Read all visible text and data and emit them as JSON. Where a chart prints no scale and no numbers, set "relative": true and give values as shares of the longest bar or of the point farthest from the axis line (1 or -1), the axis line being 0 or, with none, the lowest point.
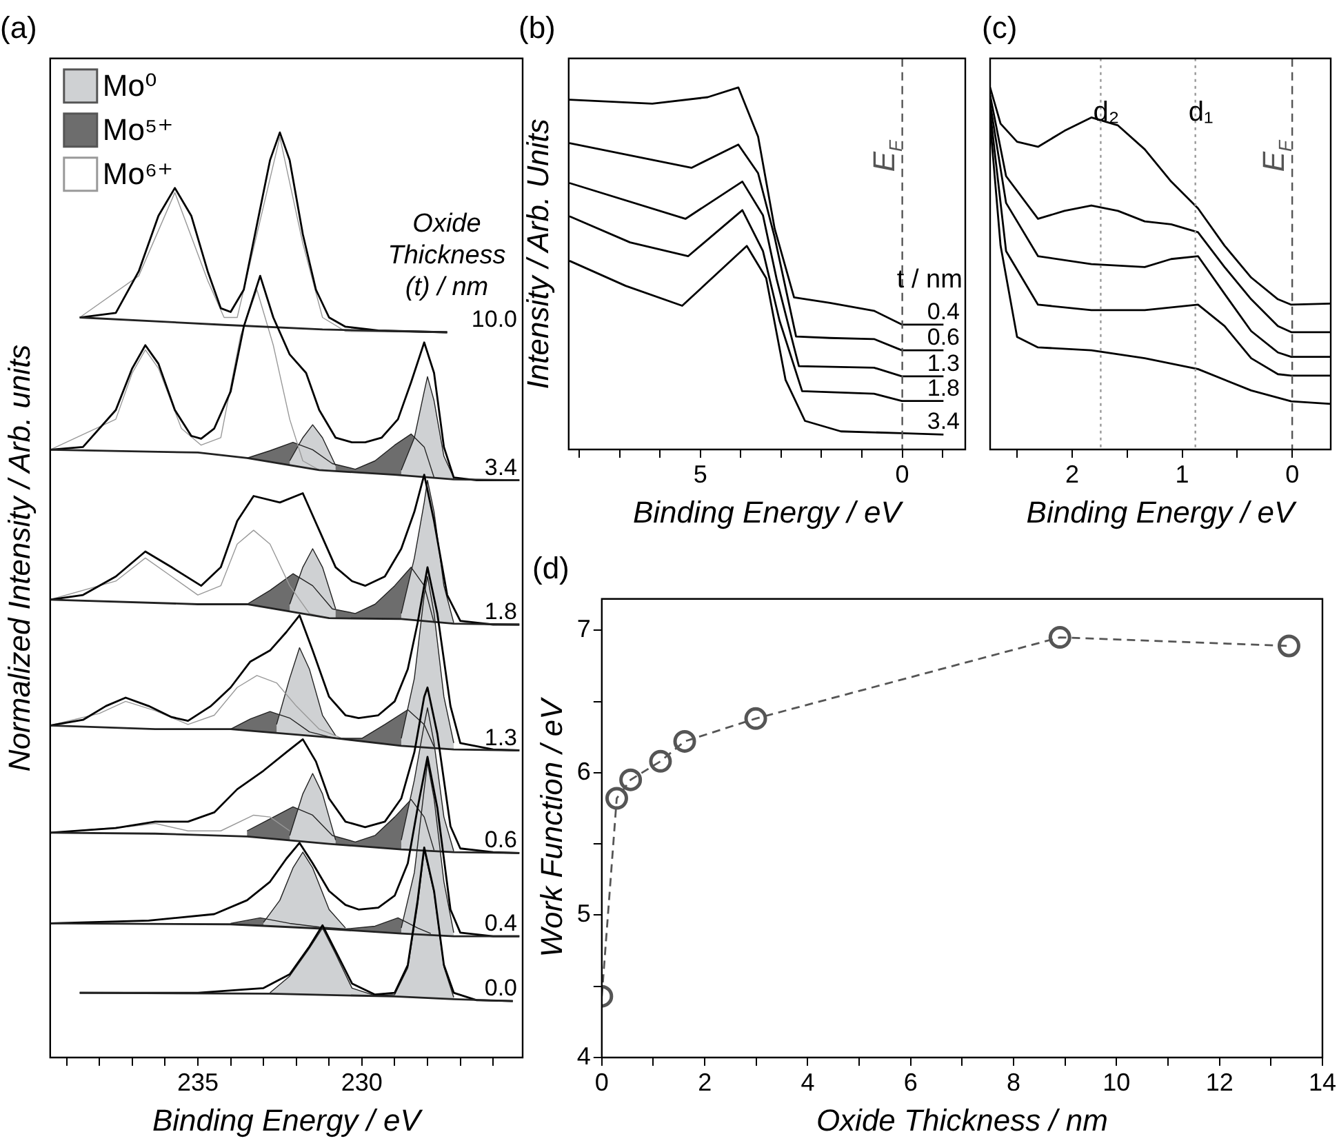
{
  "chart_data": [
    {
      "type": "line",
      "title": "(a)",
      "xlabel": "Binding Energy / eV",
      "ylabel": "Normalized Intensity / Arb. units",
      "relative": true,
      "legend": "top left",
      "legend_title": "Oxide Thickness (t) / nm",
      "xlim": [
        239.5,
        225.1
      ],
      "xticks": [
        {
          "value": 239,
          "label": null
        },
        {
          "value": 238,
          "label": null
        },
        {
          "value": 237,
          "label": null
        },
        {
          "value": 236,
          "label": null
        },
        235,
        {
          "value": 234,
          "label": null
        },
        {
          "value": 233,
          "label": null
        },
        {
          "value": 232,
          "label": null
        },
        {
          "value": 231,
          "label": null
        },
        230,
        {
          "value": 229,
          "label": null
        },
        {
          "value": 228,
          "label": null
        },
        {
          "value": 227,
          "label": null
        },
        {
          "value": 226,
          "label": null
        }
      ],
      "series": [
        {
          "color": "#222222",
          "x": [
            238.6,
            232.8,
            229.0,
            227.2,
            225.4
          ],
          "values": [
            0.07,
            0.069,
            0.066,
            0.063,
            0.061
          ]
        },
        {
          "type": "area",
          "name": "Mo⁰",
          "color": "#cfd1d3",
          "x": [
            232.8,
            232.2,
            231.6,
            231.2,
            230.8,
            230.3,
            229.6,
            229.0,
            228.6,
            228.3,
            228.1,
            227.8,
            227.5,
            227.2
          ],
          "values": [
            0.07,
            0.088,
            0.118,
            0.14,
            0.112,
            0.075,
            0.067,
            0.068,
            0.097,
            0.165,
            0.224,
            0.178,
            0.098,
            0.065
          ]
        },
        {
          "name": "0.0",
          "color": "#000000",
          "x": [
            238.6,
            235.0,
            233.0,
            232.2,
            231.6,
            231.2,
            230.8,
            230.3,
            229.6,
            229.0,
            228.6,
            228.3,
            228.1,
            227.8,
            227.5,
            227.2,
            226.5,
            225.4
          ],
          "values": [
            0.07,
            0.07,
            0.075,
            0.09,
            0.12,
            0.143,
            0.115,
            0.08,
            0.068,
            0.07,
            0.1,
            0.17,
            0.227,
            0.18,
            0.1,
            0.07,
            0.062,
            0.061
          ]
        },
        {
          "color": "#222222",
          "x": [
            239.5,
            234.0,
            231.0,
            228.8,
            227.2,
            225.2
          ],
          "values": [
            0.145,
            0.144,
            0.139,
            0.134,
            0.131,
            0.131
          ]
        },
        {
          "type": "area",
          "name": "Mo⁵⁺",
          "color": "#6d6d6d",
          "x": [
            234.0,
            233.1,
            232.2,
            231.3,
            230.5,
            229.6,
            228.9,
            228.3,
            227.9
          ],
          "values": [
            0.145,
            0.151,
            0.145,
            0.141,
            0.139,
            0.142,
            0.151,
            0.14,
            0.134
          ]
        },
        {
          "type": "area",
          "color": "#cfd1d3",
          "x": [
            233.0,
            232.5,
            232.1,
            231.8,
            231.5,
            231.0,
            230.5
          ],
          "values": [
            0.146,
            0.17,
            0.205,
            0.222,
            0.205,
            0.16,
            0.14
          ]
        },
        {
          "type": "area",
          "color": "#cfd1d3",
          "x": [
            228.8,
            228.4,
            228.1,
            228.0,
            227.8,
            227.5,
            227.2
          ],
          "values": [
            0.14,
            0.2,
            0.29,
            0.319,
            0.28,
            0.19,
            0.135
          ]
        },
        {
          "name": "0.4",
          "color": "#000000",
          "x": [
            239.5,
            236.5,
            234.5,
            233.5,
            232.8,
            232.3,
            231.9,
            231.5,
            231.0,
            230.5,
            230.1,
            229.5,
            229.0,
            228.6,
            228.3,
            228.0,
            227.7,
            227.3,
            227.0,
            226.0,
            225.2
          ],
          "values": [
            0.145,
            0.148,
            0.155,
            0.17,
            0.19,
            0.215,
            0.232,
            0.21,
            0.18,
            0.165,
            0.16,
            0.162,
            0.175,
            0.21,
            0.27,
            0.325,
            0.27,
            0.16,
            0.135,
            0.131,
            0.131
          ]
        },
        {
          "color": "#222222",
          "x": [
            239.5,
            236.3,
            233.5,
            231.0,
            228.8,
            227.2,
            225.2
          ],
          "values": [
            0.243,
            0.242,
            0.239,
            0.231,
            0.225,
            0.222,
            0.221
          ]
        },
        {
          "type": "area",
          "name": "Mo⁶⁺",
          "color": "#ffffff",
          "x": [
            239.5,
            237.0,
            236.3,
            235.3,
            234.3,
            233.3,
            232.8,
            232.2
          ],
          "values": [
            0.243,
            0.25,
            0.253,
            0.245,
            0.245,
            0.262,
            0.26,
            0.245
          ]
        },
        {
          "type": "area",
          "color": "#6d6d6d",
          "x": [
            233.5,
            232.8,
            232.1,
            231.5,
            230.9,
            230.2,
            229.6,
            229.0,
            228.5,
            228.1,
            227.8
          ],
          "values": [
            0.245,
            0.258,
            0.271,
            0.262,
            0.24,
            0.233,
            0.24,
            0.26,
            0.279,
            0.26,
            0.224
          ]
        },
        {
          "type": "area",
          "color": "#cfd1d3",
          "x": [
            232.2,
            231.8,
            231.5,
            231.2,
            230.8
          ],
          "values": [
            0.24,
            0.285,
            0.307,
            0.285,
            0.235
          ]
        },
        {
          "type": "area",
          "color": "#cfd1d3",
          "x": [
            228.8,
            228.4,
            228.1,
            228.0,
            227.8,
            227.5,
            227.2
          ],
          "values": [
            0.235,
            0.3,
            0.36,
            0.378,
            0.34,
            0.26,
            0.223
          ]
        },
        {
          "name": "0.6",
          "color": "#000000",
          "x": [
            239.5,
            237.5,
            236.3,
            235.3,
            234.5,
            233.8,
            233.0,
            232.3,
            231.8,
            231.4,
            231.0,
            230.5,
            229.9,
            229.3,
            228.8,
            228.4,
            228.1,
            228.0,
            227.7,
            227.3,
            227.0,
            226.0,
            225.2
          ],
          "values": [
            0.243,
            0.248,
            0.255,
            0.255,
            0.265,
            0.29,
            0.31,
            0.33,
            0.344,
            0.32,
            0.28,
            0.255,
            0.249,
            0.255,
            0.28,
            0.33,
            0.39,
            0.4,
            0.35,
            0.25,
            0.226,
            0.222,
            0.221
          ]
        },
        {
          "color": "#222222",
          "x": [
            239.5,
            236.3,
            234.0,
            231.0,
            228.8,
            227.2,
            225.2
          ],
          "values": [
            0.359,
            0.355,
            0.355,
            0.346,
            0.337,
            0.333,
            0.332
          ]
        },
        {
          "type": "area",
          "color": "#ffffff",
          "x": [
            239.5,
            238.0,
            237.2,
            236.3,
            235.3,
            234.5,
            233.8,
            233.2,
            232.6,
            232.0,
            231.3,
            230.6
          ],
          "values": [
            0.359,
            0.372,
            0.385,
            0.375,
            0.36,
            0.37,
            0.4,
            0.413,
            0.405,
            0.38,
            0.355,
            0.345
          ]
        },
        {
          "type": "area",
          "color": "#6d6d6d",
          "x": [
            234.0,
            233.4,
            232.8,
            232.2,
            231.6,
            230.8,
            230.0,
            229.3,
            228.6,
            228.1,
            227.8
          ],
          "values": [
            0.355,
            0.366,
            0.374,
            0.367,
            0.352,
            0.345,
            0.345,
            0.36,
            0.376,
            0.36,
            0.336
          ]
        },
        {
          "type": "area",
          "color": "#cfd1d3",
          "x": [
            232.6,
            232.2,
            231.9,
            231.6,
            231.2,
            230.8
          ],
          "values": [
            0.36,
            0.41,
            0.443,
            0.42,
            0.37,
            0.348
          ]
        },
        {
          "type": "area",
          "color": "#cfd1d3",
          "x": [
            228.8,
            228.4,
            228.1,
            228.0,
            227.8,
            227.5,
            227.2
          ],
          "values": [
            0.345,
            0.41,
            0.5,
            0.52,
            0.48,
            0.39,
            0.34
          ]
        },
        {
          "name": "1.3",
          "color": "#000000",
          "x": [
            239.5,
            238.5,
            237.8,
            237.2,
            236.5,
            235.8,
            235.3,
            234.6,
            234.0,
            233.4,
            232.8,
            232.3,
            231.9,
            231.5,
            231.0,
            230.5,
            230.1,
            229.5,
            229.0,
            228.6,
            228.3,
            228.0,
            227.7,
            227.3,
            227.0,
            226.0,
            225.2
          ],
          "values": [
            0.359,
            0.365,
            0.38,
            0.389,
            0.38,
            0.368,
            0.364,
            0.38,
            0.4,
            0.428,
            0.44,
            0.46,
            0.478,
            0.44,
            0.39,
            0.37,
            0.367,
            0.37,
            0.385,
            0.42,
            0.47,
            0.53,
            0.48,
            0.38,
            0.34,
            0.333,
            0.332
          ]
        },
        {
          "color": "#222222",
          "x": [
            239.5,
            235.0,
            233.5,
            231.0,
            228.8,
            227.2,
            225.2
          ],
          "values": [
            0.495,
            0.49,
            0.49,
            0.475,
            0.474,
            0.469,
            0.468
          ]
        },
        {
          "type": "area",
          "color": "#ffffff",
          "x": [
            239.5,
            237.5,
            236.6,
            235.8,
            235.0,
            234.3,
            233.8,
            233.3,
            232.8,
            232.2,
            231.6,
            231.0
          ],
          "values": [
            0.495,
            0.515,
            0.54,
            0.52,
            0.5,
            0.51,
            0.555,
            0.57,
            0.555,
            0.51,
            0.48,
            0.475
          ]
        },
        {
          "type": "area",
          "color": "#6d6d6d",
          "x": [
            233.5,
            232.8,
            232.1,
            231.5,
            230.9,
            230.2,
            229.6,
            229.0,
            228.5,
            228.1,
            227.8
          ],
          "values": [
            0.49,
            0.505,
            0.523,
            0.51,
            0.485,
            0.48,
            0.49,
            0.51,
            0.53,
            0.51,
            0.47
          ]
        },
        {
          "type": "area",
          "color": "#cfd1d3",
          "x": [
            232.2,
            231.8,
            231.5,
            231.2,
            230.8
          ],
          "values": [
            0.49,
            0.53,
            0.55,
            0.53,
            0.485
          ]
        },
        {
          "type": "area",
          "color": "#cfd1d3",
          "x": [
            228.8,
            228.4,
            228.1,
            228.0,
            227.8,
            227.5,
            227.2
          ],
          "values": [
            0.48,
            0.54,
            0.6,
            0.624,
            0.59,
            0.51,
            0.47
          ]
        },
        {
          "name": "1.8",
          "color": "#000000",
          "x": [
            239.5,
            238.5,
            237.5,
            236.6,
            235.8,
            234.9,
            234.3,
            233.8,
            233.3,
            232.5,
            231.8,
            231.3,
            230.8,
            230.3,
            229.9,
            229.3,
            228.8,
            228.4,
            228.1,
            227.8,
            227.4,
            227.0,
            226.0,
            225.2
          ],
          "values": [
            0.495,
            0.5,
            0.52,
            0.547,
            0.53,
            0.51,
            0.53,
            0.58,
            0.607,
            0.6,
            0.61,
            0.57,
            0.53,
            0.515,
            0.51,
            0.52,
            0.55,
            0.59,
            0.63,
            0.58,
            0.5,
            0.472,
            0.468,
            0.468
          ]
        },
        {
          "color": "#222222",
          "x": [
            239.5,
            235.0,
            233.5,
            231.3,
            229.0,
            227.2,
            225.2
          ],
          "values": [
            0.657,
            0.654,
            0.648,
            0.635,
            0.63,
            0.625,
            0.624
          ]
        },
        {
          "type": "area",
          "color": "#ffffff",
          "x": [
            239.5,
            237.5,
            237.0,
            236.6,
            236.2,
            235.5,
            234.9,
            234.3,
            233.7,
            233.2,
            232.7,
            232.2,
            231.8,
            231.3
          ],
          "values": [
            0.657,
            0.69,
            0.74,
            0.765,
            0.745,
            0.68,
            0.662,
            0.67,
            0.78,
            0.83,
            0.77,
            0.69,
            0.645,
            0.635
          ]
        },
        {
          "type": "area",
          "color": "#6d6d6d",
          "x": [
            233.5,
            232.8,
            232.1,
            231.5,
            230.9,
            230.2,
            229.6,
            229.0,
            228.5,
            228.1,
            227.8
          ],
          "values": [
            0.648,
            0.656,
            0.665,
            0.657,
            0.642,
            0.636,
            0.645,
            0.662,
            0.674,
            0.66,
            0.627
          ]
        },
        {
          "type": "area",
          "color": "#cfd1d3",
          "x": [
            232.2,
            231.8,
            231.5,
            231.2,
            230.8
          ],
          "values": [
            0.645,
            0.67,
            0.684,
            0.67,
            0.64
          ]
        },
        {
          "type": "area",
          "color": "#cfd1d3",
          "x": [
            228.8,
            228.4,
            228.1,
            228.0,
            227.8,
            227.5,
            227.2
          ],
          "values": [
            0.635,
            0.67,
            0.72,
            0.736,
            0.71,
            0.65,
            0.627
          ]
        },
        {
          "name": "3.4",
          "color": "#000000",
          "x": [
            239.5,
            238.5,
            237.5,
            237.0,
            236.6,
            236.2,
            235.7,
            235.2,
            234.9,
            234.5,
            234.0,
            233.6,
            233.1,
            232.7,
            232.2,
            231.7,
            231.3,
            230.8,
            230.3,
            229.9,
            229.4,
            228.9,
            228.5,
            228.1,
            227.8,
            227.5,
            227.2,
            226.5,
            225.2
          ],
          "values": [
            0.657,
            0.66,
            0.7,
            0.745,
            0.77,
            0.75,
            0.7,
            0.672,
            0.669,
            0.68,
            0.72,
            0.79,
            0.845,
            0.8,
            0.76,
            0.74,
            0.7,
            0.67,
            0.665,
            0.665,
            0.67,
            0.69,
            0.73,
            0.773,
            0.74,
            0.66,
            0.627,
            0.624,
            0.624
          ]
        },
        {
          "color": "#222222",
          "x": [
            238.6,
            234.2,
            231.2,
            227.4
          ],
          "values": [
            0.8,
            0.792,
            0.787,
            0.784
          ]
        },
        {
          "type": "area",
          "color": "#ffffff",
          "x": [
            238.6,
            236.8,
            235.7,
            234.7,
            234.2,
            233.8,
            233.2,
            232.5,
            231.8,
            231.2,
            230.5,
            227.4
          ],
          "values": [
            0.8,
            0.845,
            0.935,
            0.84,
            0.8,
            0.8,
            0.89,
            0.995,
            0.88,
            0.8,
            0.785,
            0.784
          ]
        },
        {
          "name": "10.0",
          "color": "#000000",
          "x": [
            238.6,
            237.5,
            236.8,
            236.2,
            235.7,
            235.2,
            234.7,
            234.3,
            234.0,
            233.6,
            233.2,
            232.8,
            232.5,
            232.2,
            231.8,
            231.4,
            231.0,
            230.5,
            229.5,
            227.4
          ],
          "values": [
            0.8,
            0.805,
            0.85,
            0.91,
            0.94,
            0.91,
            0.85,
            0.81,
            0.806,
            0.83,
            0.9,
            0.97,
            1.0,
            0.97,
            0.89,
            0.83,
            0.8,
            0.79,
            0.786,
            0.784
          ]
        }
      ]
    },
    {
      "type": "line",
      "title": "(b)",
      "xlabel": "Binding Energy / eV",
      "ylabel": "Intensity / Arb. Units",
      "relative": true,
      "legend_title": "t / nm",
      "xlim": [
        8.26,
        -1.56
      ],
      "xticks": [
        {
          "value": 8,
          "label": null
        },
        {
          "value": 7,
          "label": null
        },
        {
          "value": 6,
          "label": null
        },
        5,
        {
          "value": 4,
          "label": null
        },
        {
          "value": 3,
          "label": null
        },
        {
          "value": 2,
          "label": null
        },
        {
          "value": 1,
          "label": null
        },
        0,
        {
          "value": -1,
          "label": null
        }
      ],
      "ref_lines": [
        {
          "axis": "x",
          "value": 0,
          "label": "E$_{F}$",
          "line_style": "dashed",
          "color": "#555555"
        }
      ],
      "series": [
        {
          "name": "0.4",
          "color": "#000000",
          "x": [
            8.24,
            6.19,
            4.82,
            4.06,
            3.57,
            3.16,
            2.68,
            1.79,
            0.7,
            0.01,
            -1.02
          ],
          "values": [
            0.966,
            0.955,
            0.973,
            1.0,
            0.864,
            0.61,
            0.42,
            0.405,
            0.383,
            0.345,
            0.345
          ]
        },
        {
          "name": "0.6",
          "color": "#000000",
          "x": [
            8.24,
            5.22,
            4.06,
            3.57,
            3.16,
            2.63,
            1.79,
            0.7,
            0.01,
            -1.02
          ],
          "values": [
            0.846,
            0.778,
            0.842,
            0.763,
            0.586,
            0.312,
            0.308,
            0.305,
            0.274,
            0.274
          ]
        },
        {
          "name": "1.3",
          "color": "#000000",
          "x": [
            8.24,
            5.37,
            3.96,
            3.45,
            3.11,
            2.56,
            0.7,
            0.01,
            -1.02
          ],
          "values": [
            0.736,
            0.637,
            0.74,
            0.647,
            0.47,
            0.23,
            0.226,
            0.202,
            0.202
          ]
        },
        {
          "name": "1.8",
          "color": "#000000",
          "x": [
            8.24,
            6.74,
            5.3,
            3.96,
            3.45,
            3.04,
            2.48,
            0.7,
            0.01,
            -1.02
          ],
          "values": [
            0.644,
            0.572,
            0.534,
            0.661,
            0.548,
            0.356,
            0.161,
            0.154,
            0.134,
            0.134
          ]
        },
        {
          "name": "3.4",
          "color": "#000000",
          "x": [
            8.24,
            6.85,
            5.45,
            3.85,
            3.37,
            2.89,
            2.41,
            1.52,
            0.01,
            -1.02
          ],
          "values": [
            0.521,
            0.452,
            0.397,
            0.562,
            0.473,
            0.192,
            0.079,
            0.05,
            0.045,
            0.041
          ]
        }
      ]
    },
    {
      "type": "line",
      "title": "(c)",
      "xlabel": "Binding Energy / eV",
      "relative": true,
      "xlim": [
        2.745,
        -0.35
      ],
      "xticks": [
        {
          "value": 2.5,
          "label": null
        },
        2,
        {
          "value": 1.5,
          "label": null
        },
        1,
        {
          "value": 0.5,
          "label": null
        },
        0
      ],
      "ref_lines": [
        {
          "axis": "x",
          "value": 0,
          "label": "E$_{F}$",
          "line_style": "dashed",
          "color": "#555555"
        },
        {
          "axis": "x",
          "value": 1.74,
          "label": "d₂",
          "line_style": "dotted",
          "color": "#999999"
        },
        {
          "axis": "x",
          "value": 0.88,
          "label": "d₁",
          "line_style": "dotted",
          "color": "#999999"
        }
      ],
      "series": [
        {
          "color": "#000000",
          "x": [
            2.745,
            2.65,
            2.5,
            2.31,
            2.07,
            1.825,
            1.583,
            1.34,
            1.1,
            0.856,
            0.615,
            0.373,
            0.13,
            0.009,
            -0.35
          ],
          "values": [
            1.0,
            0.9,
            0.85,
            0.836,
            0.88,
            0.917,
            0.895,
            0.829,
            0.74,
            0.666,
            0.563,
            0.475,
            0.415,
            0.4,
            0.403
          ]
        },
        {
          "color": "#000000",
          "x": [
            2.745,
            2.6,
            2.31,
            2.07,
            1.825,
            1.583,
            1.34,
            1.1,
            0.856,
            0.615,
            0.373,
            0.13,
            0.009,
            -0.35
          ],
          "values": [
            0.978,
            0.755,
            0.637,
            0.659,
            0.674,
            0.659,
            0.63,
            0.622,
            0.6,
            0.504,
            0.415,
            0.341,
            0.324,
            0.324
          ]
        },
        {
          "color": "#000000",
          "x": [
            2.745,
            2.6,
            2.31,
            1.825,
            1.34,
            1.1,
            0.856,
            0.615,
            0.373,
            0.13,
            0.009,
            -0.35
          ],
          "values": [
            0.955,
            0.681,
            0.534,
            0.512,
            0.504,
            0.526,
            0.534,
            0.43,
            0.327,
            0.268,
            0.256,
            0.256
          ]
        },
        {
          "color": "#000000",
          "x": [
            2.745,
            2.6,
            2.31,
            1.825,
            1.34,
            0.856,
            0.615,
            0.373,
            0.13,
            0.009,
            -0.35
          ],
          "values": [
            0.933,
            0.548,
            0.4,
            0.385,
            0.385,
            0.4,
            0.341,
            0.252,
            0.208,
            0.204,
            0.204
          ]
        },
        {
          "color": "#000000",
          "x": [
            2.745,
            2.65,
            2.5,
            2.31,
            1.825,
            1.34,
            0.856,
            0.373,
            0.009,
            -0.35
          ],
          "values": [
            0.903,
            0.563,
            0.311,
            0.282,
            0.274,
            0.252,
            0.222,
            0.163,
            0.133,
            0.126
          ]
        }
      ]
    },
    {
      "type": "line",
      "title": "(d)",
      "xlabel": "Oxide Thickness / nm",
      "ylabel": "Work Function / eV",
      "marker": "circle",
      "line_style": "dashed",
      "xlim": [
        0,
        14
      ],
      "ylim": [
        4,
        7.22
      ],
      "xticks": [
        0,
        {
          "value": 1,
          "label": null
        },
        2,
        {
          "value": 3,
          "label": null
        },
        4,
        {
          "value": 5,
          "label": null
        },
        6,
        {
          "value": 7,
          "label": null
        },
        8,
        {
          "value": 9,
          "label": null
        },
        10,
        {
          "value": 11,
          "label": null
        },
        12,
        {
          "value": 13,
          "label": null
        },
        14
      ],
      "yticks": [
        4,
        {
          "value": 4.5,
          "label": null
        },
        5,
        {
          "value": 5.5,
          "label": null
        },
        6,
        {
          "value": 6.5,
          "label": null
        },
        7
      ],
      "series": [
        {
          "color": "#555555",
          "x": [
            0,
            0.29,
            0.56,
            1.14,
            1.61,
            2.99,
            8.9,
            13.35
          ],
          "values": [
            4.43,
            5.82,
            5.95,
            6.08,
            6.22,
            6.38,
            6.95,
            6.89
          ]
        }
      ]
    }
  ]
}
